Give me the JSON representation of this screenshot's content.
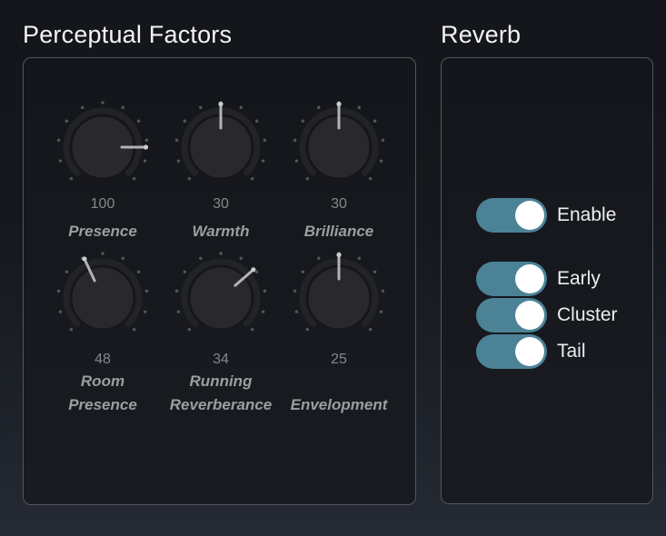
{
  "colors": {
    "accent_toggle_on": "#4b8296",
    "toggle_knob": "#ffffff",
    "title_text": "#f3f4f6",
    "knob_value_text": "#85878a",
    "knob_label_text": "#9b9da0"
  },
  "perceptual_panel": {
    "title": "Perceptual Factors",
    "knobs": [
      {
        "name": "presence",
        "value": "100",
        "label": "Presence",
        "angle": 90
      },
      {
        "name": "warmth",
        "value": "30",
        "label": "Warmth",
        "angle": 0
      },
      {
        "name": "brilliance",
        "value": "30",
        "label": "Brilliance",
        "angle": 0
      },
      {
        "name": "room-presence",
        "value": "48",
        "label": "Room Presence",
        "angle": -25
      },
      {
        "name": "running-reverberance",
        "value": "34",
        "label": "Running Reverberance",
        "angle": 49
      },
      {
        "name": "envelopment",
        "value": "25",
        "label": "Envelopment",
        "angle": 0
      }
    ]
  },
  "reverb_panel": {
    "title": "Reverb",
    "toggles": [
      {
        "name": "enable",
        "label": "Enable",
        "on": true
      },
      {
        "name": "early",
        "label": "Early",
        "on": true
      },
      {
        "name": "cluster",
        "label": "Cluster",
        "on": true
      },
      {
        "name": "tail",
        "label": "Tail",
        "on": true
      }
    ]
  }
}
